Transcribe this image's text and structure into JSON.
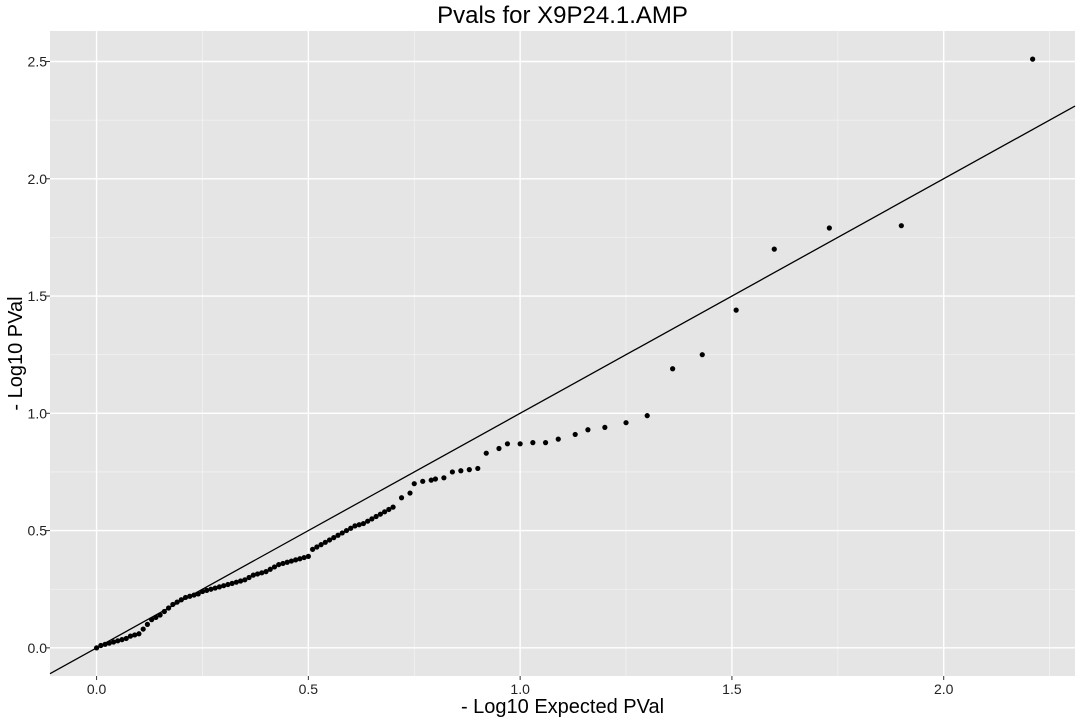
{
  "chart_data": {
    "type": "scatter",
    "title": "Pvals for X9P24.1.AMP",
    "xlabel": "- Log10 Expected PVal",
    "ylabel": "- Log10 PVal",
    "xlim": [
      -0.11,
      2.31
    ],
    "ylim": [
      -0.12,
      2.63
    ],
    "x_ticks": [
      "0.0",
      "0.5",
      "1.0",
      "1.5",
      "2.0"
    ],
    "y_ticks": [
      "0.0",
      "0.5",
      "1.0",
      "1.5",
      "2.0",
      "2.5"
    ],
    "grid": true,
    "background": "#e5e5e5",
    "point_color": "#000000",
    "reference_line": {
      "slope": 1,
      "intercept": 0,
      "color": "#000000"
    },
    "series": [
      {
        "x": [
          0.0,
          0.01,
          0.02,
          0.03,
          0.04,
          0.05,
          0.06,
          0.07,
          0.08,
          0.09,
          0.1,
          0.11,
          0.12,
          0.13,
          0.14,
          0.15,
          0.16,
          0.17,
          0.18,
          0.19,
          0.2,
          0.21,
          0.22,
          0.23,
          0.24,
          0.25,
          0.26,
          0.27,
          0.28,
          0.29,
          0.3,
          0.31,
          0.32,
          0.33,
          0.34,
          0.35,
          0.36,
          0.37,
          0.38,
          0.39,
          0.4,
          0.41,
          0.42,
          0.43,
          0.44,
          0.45,
          0.46,
          0.47,
          0.48,
          0.49,
          0.5,
          0.51,
          0.52,
          0.53,
          0.54,
          0.55,
          0.56,
          0.57,
          0.58,
          0.59,
          0.6,
          0.61,
          0.62,
          0.63,
          0.64,
          0.65,
          0.66,
          0.67,
          0.68,
          0.69,
          0.7,
          0.72,
          0.74,
          0.75,
          0.77,
          0.79,
          0.8,
          0.82,
          0.84,
          0.86,
          0.88,
          0.9,
          0.92,
          0.95,
          0.97,
          1.0,
          1.03,
          1.06,
          1.09,
          1.13,
          1.16,
          1.2,
          1.25,
          1.3,
          1.36,
          1.43,
          1.51,
          1.6,
          1.73,
          1.9,
          2.21
        ],
        "y": [
          0.0,
          0.01,
          0.015,
          0.02,
          0.025,
          0.03,
          0.035,
          0.04,
          0.05,
          0.055,
          0.06,
          0.08,
          0.1,
          0.12,
          0.13,
          0.14,
          0.155,
          0.17,
          0.185,
          0.195,
          0.205,
          0.215,
          0.22,
          0.225,
          0.23,
          0.24,
          0.245,
          0.25,
          0.255,
          0.26,
          0.265,
          0.27,
          0.275,
          0.28,
          0.285,
          0.29,
          0.3,
          0.31,
          0.315,
          0.32,
          0.325,
          0.335,
          0.345,
          0.355,
          0.36,
          0.365,
          0.37,
          0.375,
          0.38,
          0.385,
          0.39,
          0.42,
          0.43,
          0.44,
          0.45,
          0.46,
          0.47,
          0.48,
          0.49,
          0.5,
          0.51,
          0.52,
          0.525,
          0.53,
          0.54,
          0.55,
          0.56,
          0.57,
          0.58,
          0.59,
          0.6,
          0.64,
          0.66,
          0.7,
          0.71,
          0.715,
          0.72,
          0.725,
          0.75,
          0.755,
          0.76,
          0.765,
          0.83,
          0.85,
          0.87,
          0.87,
          0.875,
          0.875,
          0.89,
          0.91,
          0.93,
          0.94,
          0.96,
          0.99,
          1.19,
          1.25,
          1.44,
          1.7,
          1.79,
          1.8,
          2.51
        ]
      }
    ]
  }
}
